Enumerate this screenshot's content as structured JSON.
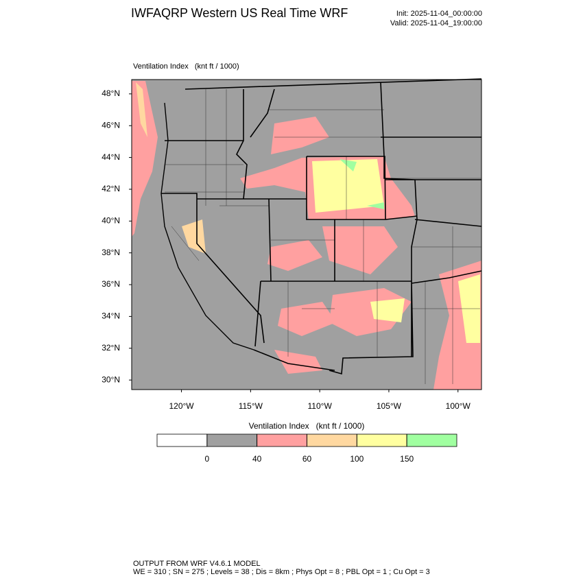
{
  "header": {
    "title": "IWFAQRP Western US Real Time WRF",
    "init": "Init: 2025-11-04_00:00:00",
    "valid": "Valid: 2025-11-04_19:00:00"
  },
  "map": {
    "label": "Ventilation Index   (knt ft / 1000)",
    "xlim": [
      -123.6,
      -98.3
    ],
    "ylim": [
      29.4,
      48.9
    ],
    "xticks": [
      {
        "value": -120,
        "label": "120°W"
      },
      {
        "value": -115,
        "label": "115°W"
      },
      {
        "value": -110,
        "label": "110°W"
      },
      {
        "value": -105,
        "label": "105°W"
      },
      {
        "value": -100,
        "label": "100°W"
      }
    ],
    "yticks": [
      {
        "value": 30,
        "label": "30°N"
      },
      {
        "value": 32,
        "label": "32°N"
      },
      {
        "value": 34,
        "label": "34°N"
      },
      {
        "value": 36,
        "label": "36°N"
      },
      {
        "value": 38,
        "label": "38°N"
      },
      {
        "value": 40,
        "label": "40°N"
      },
      {
        "value": 42,
        "label": "42°N"
      },
      {
        "value": 44,
        "label": "44°N"
      },
      {
        "value": 46,
        "label": "46°N"
      },
      {
        "value": 48,
        "label": "48°N"
      }
    ]
  },
  "colorbar": {
    "title": "Ventilation Index   (knt ft / 1000)",
    "colors": [
      "#ffffff",
      "#a0a0a0",
      "#ffa0a0",
      "#ffd8a0",
      "#ffffa0",
      "#a0ffa0"
    ],
    "levels": [
      0,
      40,
      60,
      100,
      150
    ]
  },
  "footer": {
    "line1": "OUTPUT FROM WRF V4.6.1 MODEL",
    "line2": "WE = 310 ; SN = 275 ; Levels = 38 ; Dis = 8km ; Phys Opt = 8 ; PBL Opt = 1 ; Cu Opt = 3"
  }
}
